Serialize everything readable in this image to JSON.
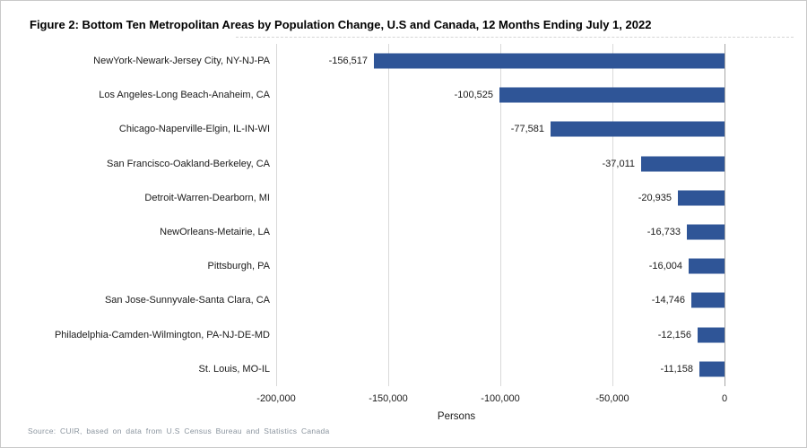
{
  "figure": {
    "source": "Source:  CUIR, based  on  data  from  U.S Census  Bureau  and  Statistics  Canada"
  },
  "chart_data": {
    "type": "bar",
    "orientation": "horizontal",
    "title": "Figure 2: Bottom Ten Metropolitan Areas by Population Change, U.S and Canada, 12 Months Ending July 1, 2022",
    "categories": [
      "NewYork-Newark-Jersey City, NY-NJ-PA",
      "Los Angeles-Long Beach-Anaheim, CA",
      "Chicago-Naperville-Elgin, IL-IN-WI",
      "San Francisco-Oakland-Berkeley, CA",
      "Detroit-Warren-Dearborn, MI",
      "NewOrleans-Metairie, LA",
      "Pittsburgh, PA",
      "San Jose-Sunnyvale-Santa Clara, CA",
      "Philadelphia-Camden-Wilmington, PA-NJ-DE-MD",
      "St. Louis, MO-IL"
    ],
    "values": [
      -156517,
      -100525,
      -77581,
      -37011,
      -20935,
      -16733,
      -16004,
      -14746,
      -12156,
      -11158
    ],
    "value_labels": [
      "-156,517",
      "-100,525",
      "-77,581",
      "-37,011",
      "-20,935",
      "-16,733",
      "-16,004",
      "-14,746",
      "-12,156",
      "-11,158"
    ],
    "xlabel": "Persons",
    "ylabel": "",
    "xlim": [
      -200000,
      0
    ],
    "x_ticks": [
      -200000,
      -150000,
      -100000,
      -50000,
      0
    ],
    "x_tick_labels": [
      "-200,000",
      "-150,000",
      "-100,000",
      "-50,000",
      "0"
    ],
    "grid": "vertical",
    "legend": "none",
    "bar_color": "#2F5597",
    "gridline_color": "#D9D9D9",
    "zero_line_color": "#A6A6A6"
  }
}
